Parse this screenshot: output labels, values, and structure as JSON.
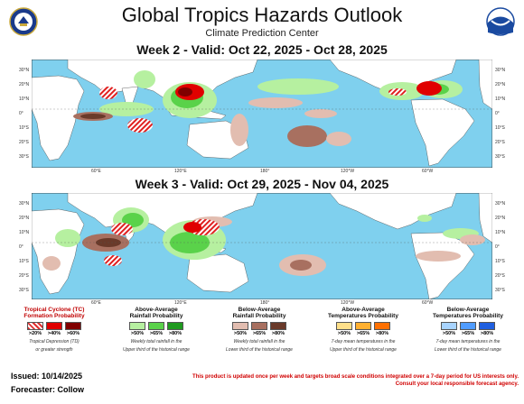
{
  "header": {
    "title": "Global Tropics Hazards Outlook",
    "subtitle": "Climate Prediction Center"
  },
  "week2": {
    "title": "Week 2 - Valid: Oct 22, 2025 - Oct 28, 2025"
  },
  "week3": {
    "title": "Week 3 - Valid: Oct 29, 2025 - Nov 04, 2025"
  },
  "axes": {
    "lat_labels": [
      "30°N",
      "20°N",
      "10°N",
      "0°",
      "10°S",
      "20°S",
      "30°S"
    ],
    "lon_labels": [
      "60°E",
      "120°E",
      "180°",
      "120°W",
      "60°W"
    ]
  },
  "legend": {
    "tc": {
      "title_line1": "Tropical Cyclone (TC)",
      "title_line2": "Formation Probability",
      "items": [
        ">20%",
        ">40%",
        ">60%"
      ],
      "note_line1": "Tropical Depression (TD)",
      "note_line2": "or greater strength",
      "colors": [
        "#e03030",
        "#e00000",
        "#800000"
      ]
    },
    "above_rain": {
      "title_line1": "Above-Average",
      "title_line2": "Rainfall Probability",
      "items": [
        ">50%",
        ">65%",
        ">80%"
      ],
      "note_line1": "Weekly total rainfall in the",
      "note_line2": "Upper third of the historical range",
      "colors": [
        "#b6f0a0",
        "#5ad24a",
        "#1f9a1f"
      ]
    },
    "below_rain": {
      "title_line1": "Below-Average",
      "title_line2": "Rainfall Probability",
      "items": [
        ">50%",
        ">65%",
        ">80%"
      ],
      "note_line1": "Weekly total rainfall in the",
      "note_line2": "Lower third of the historical range",
      "colors": [
        "#e2bdb0",
        "#a87060",
        "#6a3a2a"
      ]
    },
    "above_temp": {
      "title_line1": "Above-Average",
      "title_line2": "Temperatures Probability",
      "items": [
        ">50%",
        ">65%",
        ">80%"
      ],
      "note_line1": "7-day mean temperatures in the",
      "note_line2": "Upper third of the historical range",
      "colors": [
        "#ffe08a",
        "#ffb030",
        "#ff7000"
      ]
    },
    "below_temp": {
      "title_line1": "Below-Average",
      "title_line2": "Temperatures Probability",
      "items": [
        ">50%",
        ">65%",
        ">80%"
      ],
      "note_line1": "7-day mean temperatures in the",
      "note_line2": "Lower third of the historical range",
      "colors": [
        "#a8d4ff",
        "#4f9cff",
        "#1f5fe0"
      ]
    }
  },
  "footer": {
    "issued": "Issued: 10/14/2025",
    "forecaster": "Forecaster: Collow",
    "disclaimer_line1": "This product is updated once per week and targets broad scale conditions integrated over a 7-day period for US interests only.",
    "disclaimer_line2": "Consult your local responsible forecast agency."
  },
  "colors": {
    "ocean": "#7fd0ee",
    "land": "#ffffff",
    "tc_hatch": "#e02020"
  }
}
